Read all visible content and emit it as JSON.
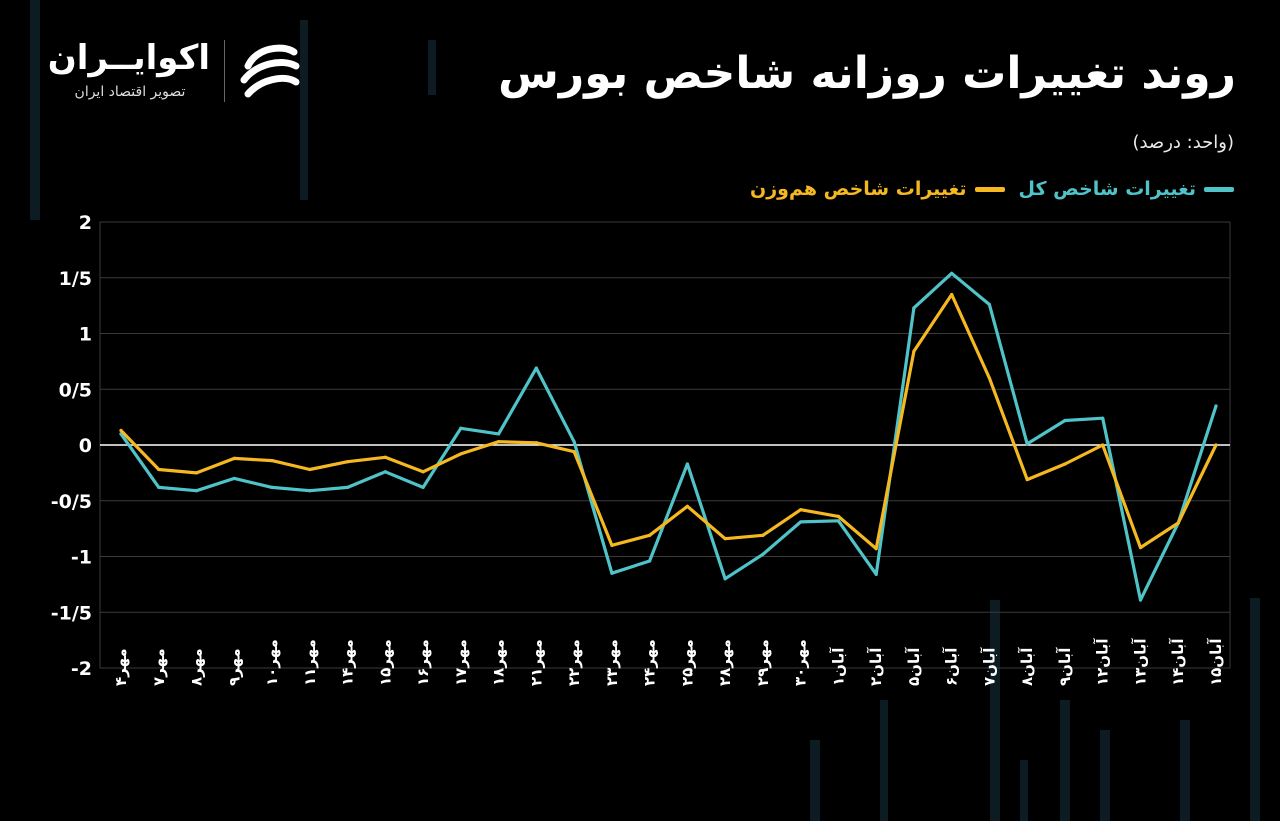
{
  "header": {
    "title": "روند تغییرات روزانه شاخص بورس",
    "unit": "(واحد: درصد)"
  },
  "brand": {
    "name": "اکوایــران",
    "tagline": "تصویر اقتصاد ایران",
    "logo_icon": "ecoiran-logo-icon"
  },
  "colors": {
    "background": "#000000",
    "total_index": "#4fc3c8",
    "equal_weight_index": "#f5b820",
    "grid": "#3a3a3a",
    "zero_line": "#ffffff"
  },
  "chart_data": {
    "type": "line",
    "title": "روند تغییرات روزانه شاخص بورس",
    "ylabel": "",
    "xlabel": "",
    "ylim": [
      -2,
      2
    ],
    "yticks": [
      2,
      1.5,
      1,
      0.5,
      0,
      -0.5,
      -1,
      -1.5,
      -2
    ],
    "ytick_labels": [
      "2",
      "1/5",
      "1",
      "0/5",
      "0",
      "-0/5",
      "-1",
      "-1/5",
      "-2"
    ],
    "grid": true,
    "legend_position": "top-right",
    "categories": [
      "مهر۴",
      "مهر۷",
      "مهر۸",
      "مهر۹",
      "مهر۱۰",
      "مهر۱۱",
      "مهر۱۴",
      "مهر۱۵",
      "مهر۱۶",
      "مهر۱۷",
      "مهر۱۸",
      "مهر۲۱",
      "مهر۲۲",
      "مهر۲۳",
      "مهر۲۴",
      "مهر۲۵",
      "مهر۲۸",
      "مهر۲۹",
      "مهر۳۰",
      "آبان۱",
      "آبان۲",
      "آبان۵",
      "آبان۶",
      "آبان۷",
      "آبان۸",
      "آبان۹",
      "آبان۱۲",
      "آبان۱۳",
      "آبان۱۴",
      "آبان۱۵"
    ],
    "series": [
      {
        "name": "تغییرات شاخص کل",
        "color": "#4fc3c8",
        "values": [
          0.1,
          -0.38,
          -0.41,
          -0.3,
          -0.38,
          -0.41,
          -0.38,
          -0.24,
          -0.38,
          0.15,
          0.1,
          0.69,
          0.03,
          -1.15,
          -1.04,
          -0.17,
          -1.2,
          -0.98,
          -0.69,
          -0.68,
          -1.16,
          1.23,
          1.54,
          1.26,
          0.01,
          0.22,
          0.24,
          -1.39,
          -0.7,
          0.35
        ]
      },
      {
        "name": "تغییرات شاخص هم‌وزن",
        "color": "#f5b820",
        "values": [
          0.13,
          -0.22,
          -0.25,
          -0.12,
          -0.14,
          -0.22,
          -0.15,
          -0.11,
          -0.24,
          -0.08,
          0.03,
          0.02,
          -0.06,
          -0.9,
          -0.81,
          -0.55,
          -0.84,
          -0.81,
          -0.58,
          -0.64,
          -0.93,
          0.84,
          1.35,
          0.6,
          -0.31,
          -0.17,
          0.0,
          -0.92,
          -0.7,
          0.0
        ]
      }
    ]
  }
}
